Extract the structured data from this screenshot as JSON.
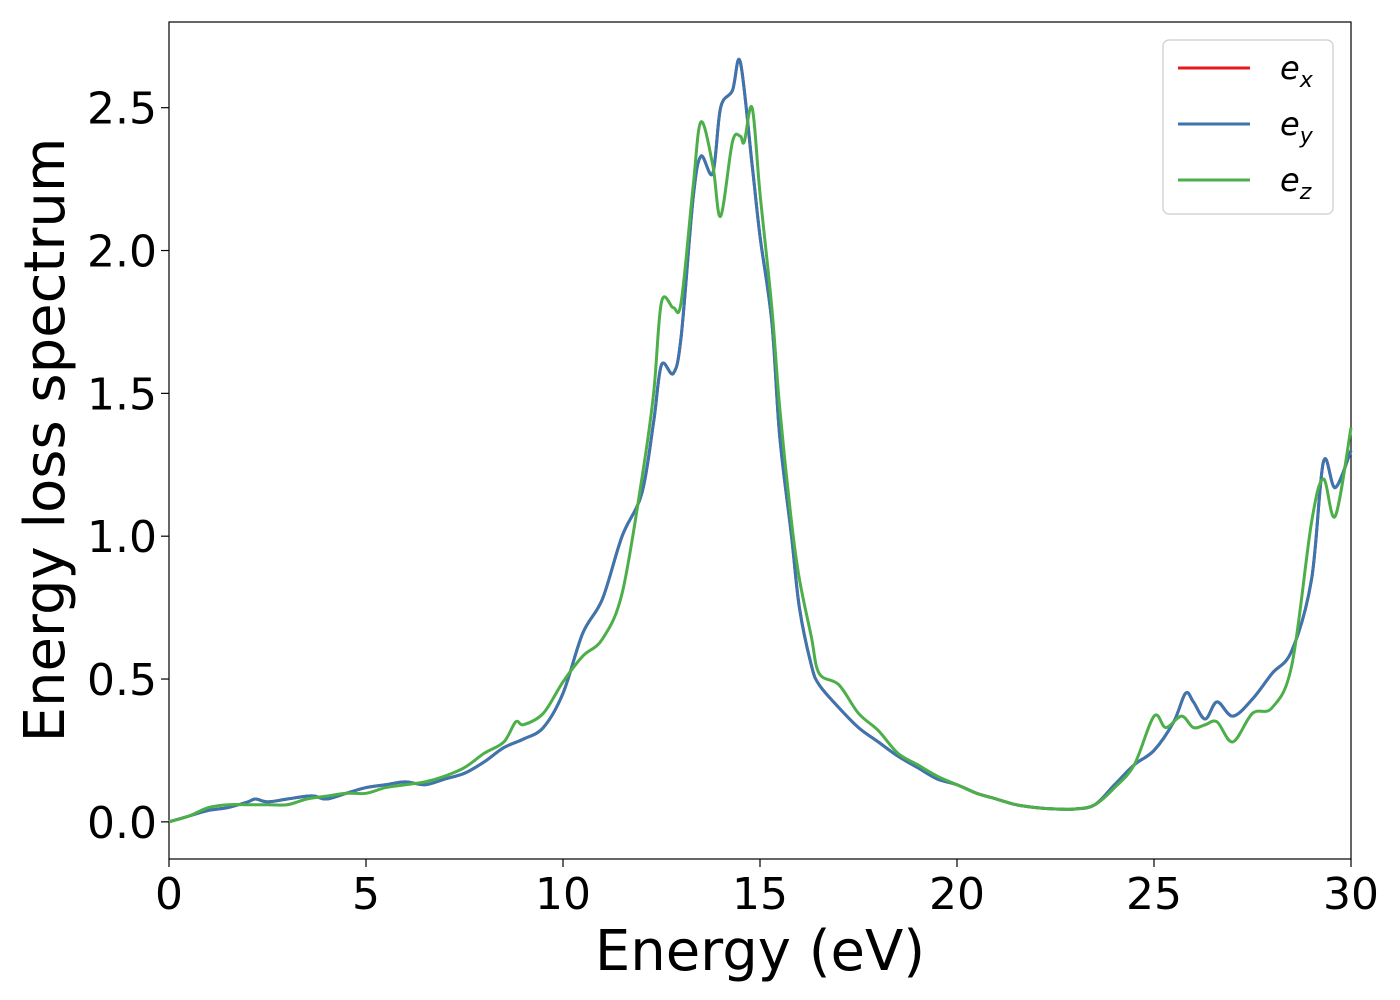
{
  "chart_data": {
    "type": "line",
    "xlabel": "Energy (eV)",
    "ylabel": "Energy loss spectrum",
    "xlim": [
      0,
      30
    ],
    "ylim": [
      -0.13,
      2.8
    ],
    "xticks": [
      0,
      5,
      10,
      15,
      20,
      25,
      30
    ],
    "xtick_labels": [
      "0",
      "5",
      "10",
      "15",
      "20",
      "25",
      "30"
    ],
    "yticks": [
      0.0,
      0.5,
      1.0,
      1.5,
      2.0,
      2.5
    ],
    "ytick_labels": [
      "0.0",
      "0.5",
      "1.0",
      "1.5",
      "2.0",
      "2.5"
    ],
    "grid": false,
    "legend_position": "top-right",
    "series": [
      {
        "name": "e_x",
        "legend_base": "e",
        "legend_sub": "x",
        "color": "#e41a1c",
        "x": [
          0,
          0.5,
          1.0,
          1.5,
          2.0,
          2.2,
          2.5,
          3.0,
          3.5,
          3.7,
          4.0,
          4.5,
          5.0,
          5.5,
          6.0,
          6.5,
          7.0,
          7.5,
          8.0,
          8.5,
          9.0,
          9.5,
          10.0,
          10.5,
          11.0,
          11.5,
          12.0,
          12.3,
          12.5,
          12.8,
          13.0,
          13.3,
          13.5,
          13.8,
          14.0,
          14.3,
          14.5,
          14.8,
          15.0,
          15.3,
          15.5,
          15.8,
          16.0,
          16.3,
          16.5,
          17.0,
          17.5,
          18.0,
          18.5,
          19.0,
          19.5,
          20.0,
          20.5,
          21.0,
          21.5,
          22.0,
          22.5,
          23.0,
          23.5,
          24.0,
          24.5,
          25.0,
          25.5,
          25.8,
          26.0,
          26.3,
          26.6,
          27.0,
          27.5,
          28.0,
          28.5,
          29.0,
          29.3,
          29.6,
          30.0
        ],
        "y": [
          0.0,
          0.02,
          0.04,
          0.05,
          0.07,
          0.08,
          0.07,
          0.08,
          0.09,
          0.09,
          0.08,
          0.1,
          0.12,
          0.13,
          0.14,
          0.13,
          0.15,
          0.17,
          0.21,
          0.26,
          0.29,
          0.33,
          0.45,
          0.66,
          0.78,
          1.0,
          1.15,
          1.4,
          1.6,
          1.57,
          1.7,
          2.18,
          2.33,
          2.27,
          2.5,
          2.56,
          2.66,
          2.3,
          2.05,
          1.75,
          1.35,
          1.0,
          0.75,
          0.55,
          0.48,
          0.4,
          0.33,
          0.28,
          0.23,
          0.19,
          0.15,
          0.13,
          0.1,
          0.08,
          0.06,
          0.05,
          0.045,
          0.045,
          0.06,
          0.13,
          0.2,
          0.25,
          0.35,
          0.45,
          0.42,
          0.36,
          0.42,
          0.37,
          0.43,
          0.52,
          0.6,
          0.85,
          1.26,
          1.17,
          1.3
        ]
      },
      {
        "name": "e_y",
        "legend_base": "e",
        "legend_sub": "y",
        "color": "#3a76b0",
        "x": [
          0,
          0.5,
          1.0,
          1.5,
          2.0,
          2.2,
          2.5,
          3.0,
          3.5,
          3.7,
          4.0,
          4.5,
          5.0,
          5.5,
          6.0,
          6.5,
          7.0,
          7.5,
          8.0,
          8.5,
          9.0,
          9.5,
          10.0,
          10.5,
          11.0,
          11.5,
          12.0,
          12.3,
          12.5,
          12.8,
          13.0,
          13.3,
          13.5,
          13.8,
          14.0,
          14.3,
          14.5,
          14.8,
          15.0,
          15.3,
          15.5,
          15.8,
          16.0,
          16.3,
          16.5,
          17.0,
          17.5,
          18.0,
          18.5,
          19.0,
          19.5,
          20.0,
          20.5,
          21.0,
          21.5,
          22.0,
          22.5,
          23.0,
          23.5,
          24.0,
          24.5,
          25.0,
          25.5,
          25.8,
          26.0,
          26.3,
          26.6,
          27.0,
          27.5,
          28.0,
          28.5,
          29.0,
          29.3,
          29.6,
          30.0
        ],
        "y": [
          0.0,
          0.02,
          0.04,
          0.05,
          0.07,
          0.08,
          0.07,
          0.08,
          0.09,
          0.09,
          0.08,
          0.1,
          0.12,
          0.13,
          0.14,
          0.13,
          0.15,
          0.17,
          0.21,
          0.26,
          0.29,
          0.33,
          0.45,
          0.66,
          0.78,
          1.0,
          1.15,
          1.4,
          1.6,
          1.57,
          1.7,
          2.18,
          2.33,
          2.27,
          2.5,
          2.56,
          2.66,
          2.3,
          2.05,
          1.75,
          1.35,
          1.0,
          0.75,
          0.55,
          0.48,
          0.4,
          0.33,
          0.28,
          0.23,
          0.19,
          0.15,
          0.13,
          0.1,
          0.08,
          0.06,
          0.05,
          0.045,
          0.045,
          0.06,
          0.13,
          0.2,
          0.25,
          0.35,
          0.45,
          0.42,
          0.36,
          0.42,
          0.37,
          0.43,
          0.52,
          0.6,
          0.85,
          1.26,
          1.17,
          1.3
        ]
      },
      {
        "name": "e_z",
        "legend_base": "e",
        "legend_sub": "z",
        "color": "#4daf4a",
        "x": [
          0,
          0.5,
          1.0,
          1.5,
          2.0,
          2.5,
          3.0,
          3.5,
          4.0,
          4.5,
          5.0,
          5.5,
          6.0,
          6.5,
          7.0,
          7.5,
          8.0,
          8.5,
          8.8,
          9.0,
          9.5,
          10.0,
          10.5,
          11.0,
          11.5,
          12.0,
          12.3,
          12.5,
          12.8,
          13.0,
          13.3,
          13.5,
          13.8,
          14.0,
          14.3,
          14.5,
          14.6,
          14.8,
          15.0,
          15.3,
          15.5,
          15.8,
          16.0,
          16.3,
          16.5,
          17.0,
          17.5,
          18.0,
          18.5,
          19.0,
          19.5,
          20.0,
          20.5,
          21.0,
          21.5,
          22.0,
          22.5,
          23.0,
          23.5,
          24.0,
          24.5,
          25.0,
          25.3,
          25.7,
          26.0,
          26.3,
          26.6,
          27.0,
          27.5,
          28.0,
          28.5,
          29.0,
          29.3,
          29.6,
          30.0
        ],
        "y": [
          0.0,
          0.02,
          0.05,
          0.06,
          0.06,
          0.06,
          0.06,
          0.08,
          0.09,
          0.1,
          0.1,
          0.12,
          0.13,
          0.14,
          0.16,
          0.19,
          0.24,
          0.28,
          0.35,
          0.34,
          0.38,
          0.49,
          0.58,
          0.64,
          0.8,
          1.2,
          1.5,
          1.82,
          1.8,
          1.82,
          2.22,
          2.45,
          2.3,
          2.12,
          2.38,
          2.4,
          2.38,
          2.5,
          2.2,
          1.8,
          1.45,
          1.05,
          0.85,
          0.65,
          0.52,
          0.48,
          0.38,
          0.32,
          0.24,
          0.2,
          0.16,
          0.13,
          0.1,
          0.08,
          0.06,
          0.05,
          0.045,
          0.045,
          0.06,
          0.12,
          0.2,
          0.37,
          0.33,
          0.37,
          0.33,
          0.34,
          0.35,
          0.28,
          0.38,
          0.4,
          0.55,
          1.05,
          1.2,
          1.07,
          1.38
        ]
      }
    ]
  }
}
